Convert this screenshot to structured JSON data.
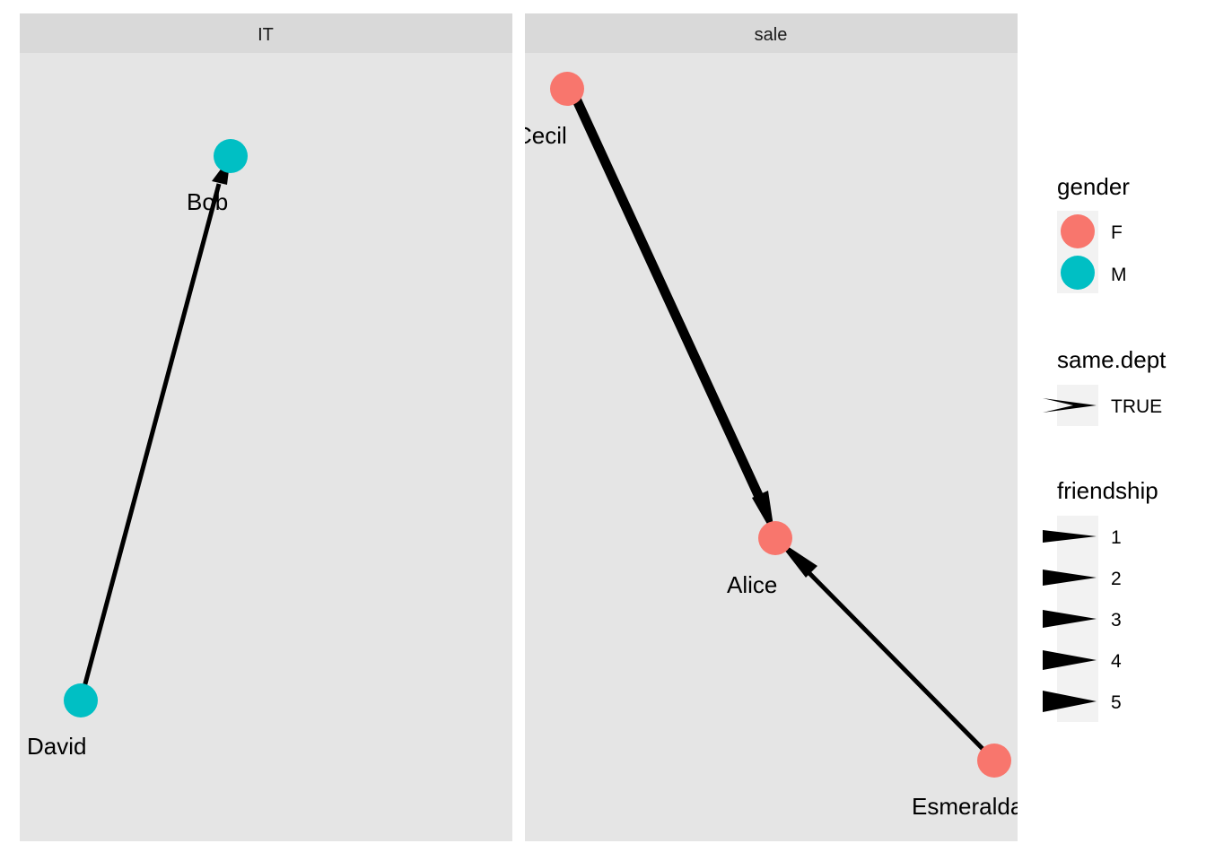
{
  "colors": {
    "F": "#F8766D",
    "M": "#00BFC4",
    "panel_bg": "#E5E5E5",
    "strip_bg": "#D9D9D9",
    "legend_key_bg": "#F2F2F2",
    "edge": "#000000"
  },
  "facets": [
    {
      "strip": "IT",
      "nodes": [
        {
          "id": "Bob",
          "label": "Bob",
          "gender": "M"
        },
        {
          "id": "David",
          "label": "David",
          "gender": "M"
        }
      ],
      "edges": [
        {
          "from": "David",
          "to": "Bob",
          "friendship": 1,
          "same_dept": "TRUE"
        }
      ]
    },
    {
      "strip": "sale",
      "nodes": [
        {
          "id": "Cecil",
          "label": "Cecil",
          "gender": "F"
        },
        {
          "id": "Alice",
          "label": "Alice",
          "gender": "F"
        },
        {
          "id": "Esmeralda",
          "label": "Esmeralda",
          "gender": "F"
        }
      ],
      "edges": [
        {
          "from": "Cecil",
          "to": "Alice",
          "friendship": 5,
          "same_dept": "TRUE"
        },
        {
          "from": "Esmeralda",
          "to": "Alice",
          "friendship": 1,
          "same_dept": "TRUE"
        }
      ]
    }
  ],
  "legend": {
    "gender": {
      "title": "gender",
      "items": [
        "F",
        "M"
      ]
    },
    "same_dept": {
      "title": "same.dept",
      "items": [
        "TRUE"
      ]
    },
    "friendship": {
      "title": "friendship",
      "items": [
        "1",
        "2",
        "3",
        "4",
        "5"
      ]
    }
  }
}
